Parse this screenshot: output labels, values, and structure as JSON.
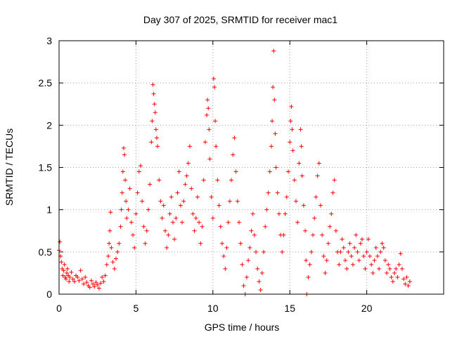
{
  "chart_data": {
    "type": "scatter",
    "title": "Day 307 of 2025, SRMTID for receiver mac1",
    "xlabel": "GPS time / hours",
    "ylabel": "SRMTID / TECUs",
    "xlim": [
      0,
      25
    ],
    "ylim": [
      0,
      3
    ],
    "xticks": [
      0,
      5,
      10,
      15,
      20
    ],
    "xtick_labels": [
      "0",
      "5",
      "10",
      "15",
      "20"
    ],
    "yticks": [
      0,
      0.5,
      1,
      1.5,
      2,
      2.5,
      3
    ],
    "ytick_labels": [
      "0",
      "0.5",
      "1",
      "1.5",
      "2",
      "2.5",
      "3"
    ],
    "grid": true,
    "marker": "+",
    "series": [
      {
        "name": "SRMTID",
        "color": "#ff0000",
        "points": [
          [
            0.0,
            0.52
          ],
          [
            0.05,
            0.62
          ],
          [
            0.1,
            0.45
          ],
          [
            0.15,
            0.38
          ],
          [
            0.2,
            0.3
          ],
          [
            0.25,
            0.22
          ],
          [
            0.3,
            0.28
          ],
          [
            0.35,
            0.35
          ],
          [
            0.4,
            0.2
          ],
          [
            0.45,
            0.18
          ],
          [
            0.5,
            0.25
          ],
          [
            0.55,
            0.3
          ],
          [
            0.6,
            0.22
          ],
          [
            0.65,
            0.15
          ],
          [
            0.7,
            0.2
          ],
          [
            0.8,
            0.26
          ],
          [
            0.9,
            0.18
          ],
          [
            1.0,
            0.15
          ],
          [
            1.1,
            0.22
          ],
          [
            1.2,
            0.2
          ],
          [
            1.3,
            0.16
          ],
          [
            1.4,
            0.28
          ],
          [
            1.5,
            0.18
          ],
          [
            1.6,
            0.12
          ],
          [
            1.7,
            0.2
          ],
          [
            1.8,
            0.14
          ],
          [
            1.9,
            0.1
          ],
          [
            2.0,
            0.08
          ],
          [
            2.1,
            0.16
          ],
          [
            2.2,
            0.12
          ],
          [
            2.3,
            0.09
          ],
          [
            2.4,
            0.14
          ],
          [
            2.5,
            0.11
          ],
          [
            2.6,
            0.07
          ],
          [
            2.7,
            0.13
          ],
          [
            2.8,
            0.2
          ],
          [
            2.9,
            0.15
          ],
          [
            3.0,
            0.22
          ],
          [
            3.1,
            0.35
          ],
          [
            3.2,
            0.45
          ],
          [
            3.25,
            0.6
          ],
          [
            3.3,
            0.75
          ],
          [
            3.35,
            0.97
          ],
          [
            3.4,
            0.55
          ],
          [
            3.5,
            0.38
          ],
          [
            3.6,
            0.3
          ],
          [
            3.7,
            0.42
          ],
          [
            3.8,
            0.5
          ],
          [
            3.9,
            0.6
          ],
          [
            4.0,
            0.8
          ],
          [
            4.05,
            1.0
          ],
          [
            4.1,
            1.2
          ],
          [
            4.15,
            1.45
          ],
          [
            4.2,
            1.73
          ],
          [
            4.25,
            1.65
          ],
          [
            4.3,
            1.35
          ],
          [
            4.35,
            1.1
          ],
          [
            4.4,
            0.9
          ],
          [
            4.5,
            1.0
          ],
          [
            4.6,
            1.25
          ],
          [
            4.7,
            0.85
          ],
          [
            4.8,
            0.7
          ],
          [
            4.9,
            0.55
          ],
          [
            5.0,
            0.95
          ],
          [
            5.1,
            1.2
          ],
          [
            5.2,
            1.45
          ],
          [
            5.3,
            1.52
          ],
          [
            5.4,
            1.1
          ],
          [
            5.5,
            0.8
          ],
          [
            5.6,
            0.6
          ],
          [
            5.7,
            0.75
          ],
          [
            5.8,
            1.0
          ],
          [
            5.9,
            1.3
          ],
          [
            6.0,
            1.8
          ],
          [
            6.05,
            2.05
          ],
          [
            6.1,
            2.48
          ],
          [
            6.15,
            2.37
          ],
          [
            6.2,
            2.25
          ],
          [
            6.25,
            2.15
          ],
          [
            6.3,
            1.95
          ],
          [
            6.35,
            1.85
          ],
          [
            6.4,
            1.75
          ],
          [
            6.5,
            1.35
          ],
          [
            6.6,
            1.1
          ],
          [
            6.7,
            0.9
          ],
          [
            6.8,
            1.05
          ],
          [
            6.9,
            0.75
          ],
          [
            7.0,
            0.55
          ],
          [
            7.1,
            0.7
          ],
          [
            7.2,
            0.95
          ],
          [
            7.3,
            1.15
          ],
          [
            7.4,
            0.85
          ],
          [
            7.5,
            0.65
          ],
          [
            7.6,
            0.9
          ],
          [
            7.7,
            1.2
          ],
          [
            7.8,
            1.45
          ],
          [
            7.9,
            1.05
          ],
          [
            8.0,
            0.85
          ],
          [
            8.1,
            1.1
          ],
          [
            8.2,
            1.3
          ],
          [
            8.3,
            1.4
          ],
          [
            8.4,
            1.55
          ],
          [
            8.5,
            1.75
          ],
          [
            8.6,
            1.25
          ],
          [
            8.7,
            0.95
          ],
          [
            8.8,
            0.75
          ],
          [
            8.9,
            0.9
          ],
          [
            9.0,
            1.15
          ],
          [
            9.1,
            0.85
          ],
          [
            9.2,
            0.6
          ],
          [
            9.3,
            0.8
          ],
          [
            9.4,
            1.35
          ],
          [
            9.5,
            1.8
          ],
          [
            9.6,
            2.12
          ],
          [
            9.65,
            2.3
          ],
          [
            9.7,
            2.2
          ],
          [
            9.75,
            1.95
          ],
          [
            9.8,
            1.6
          ],
          [
            9.9,
            1.15
          ],
          [
            10.0,
            0.9
          ],
          [
            10.05,
            2.55
          ],
          [
            10.1,
            2.45
          ],
          [
            10.15,
            2.05
          ],
          [
            10.2,
            1.75
          ],
          [
            10.3,
            1.35
          ],
          [
            10.4,
            1.05
          ],
          [
            10.5,
            0.8
          ],
          [
            10.6,
            0.6
          ],
          [
            10.7,
            0.45
          ],
          [
            10.8,
            0.3
          ],
          [
            10.9,
            0.55
          ],
          [
            11.0,
            0.85
          ],
          [
            11.1,
            1.1
          ],
          [
            11.2,
            1.35
          ],
          [
            11.3,
            1.65
          ],
          [
            11.4,
            1.85
          ],
          [
            11.5,
            1.45
          ],
          [
            11.6,
            1.1
          ],
          [
            11.7,
            0.85
          ],
          [
            11.8,
            0.6
          ],
          [
            11.9,
            0.35
          ],
          [
            12.0,
            0.1
          ],
          [
            12.1,
            0.0
          ],
          [
            12.2,
            0.2
          ],
          [
            12.3,
            0.4
          ],
          [
            12.4,
            0.55
          ],
          [
            12.5,
            0.75
          ],
          [
            12.6,
            0.95
          ],
          [
            12.7,
            0.7
          ],
          [
            12.8,
            0.5
          ],
          [
            12.9,
            0.3
          ],
          [
            13.0,
            0.15
          ],
          [
            13.1,
            0.05
          ],
          [
            13.2,
            0.25
          ],
          [
            13.3,
            0.5
          ],
          [
            13.4,
            0.8
          ],
          [
            13.5,
            1.0
          ],
          [
            13.6,
            1.2
          ],
          [
            13.7,
            1.45
          ],
          [
            13.8,
            1.75
          ],
          [
            13.85,
            2.05
          ],
          [
            13.9,
            2.45
          ],
          [
            13.95,
            2.88
          ],
          [
            14.0,
            2.3
          ],
          [
            14.05,
            1.9
          ],
          [
            14.1,
            1.5
          ],
          [
            14.2,
            1.2
          ],
          [
            14.3,
            0.95
          ],
          [
            14.4,
            0.7
          ],
          [
            14.5,
            0.5
          ],
          [
            14.6,
            0.7
          ],
          [
            14.7,
            0.95
          ],
          [
            14.8,
            1.15
          ],
          [
            14.9,
            1.45
          ],
          [
            15.0,
            1.8
          ],
          [
            15.05,
            2.05
          ],
          [
            15.1,
            2.22
          ],
          [
            15.15,
            1.95
          ],
          [
            15.2,
            1.7
          ],
          [
            15.3,
            1.35
          ],
          [
            15.4,
            1.1
          ],
          [
            15.5,
            0.85
          ],
          [
            15.6,
            1.55
          ],
          [
            15.7,
            1.95
          ],
          [
            15.75,
            1.75
          ],
          [
            15.8,
            1.4
          ],
          [
            15.9,
            1.05
          ],
          [
            16.0,
            0.75
          ],
          [
            16.05,
            0.4
          ],
          [
            16.1,
            0.0
          ],
          [
            16.2,
            0.2
          ],
          [
            16.3,
            0.35
          ],
          [
            16.4,
            0.5
          ],
          [
            16.5,
            0.7
          ],
          [
            16.6,
            0.9
          ],
          [
            16.7,
            1.15
          ],
          [
            16.8,
            1.4
          ],
          [
            16.9,
            1.55
          ],
          [
            17.0,
            1.05
          ],
          [
            17.1,
            0.7
          ],
          [
            17.2,
            0.45
          ],
          [
            17.3,
            0.25
          ],
          [
            17.4,
            0.4
          ],
          [
            17.5,
            0.6
          ],
          [
            17.6,
            0.8
          ],
          [
            17.7,
            0.95
          ],
          [
            17.8,
            1.2
          ],
          [
            17.9,
            1.35
          ],
          [
            18.0,
            0.75
          ],
          [
            18.1,
            0.5
          ],
          [
            18.2,
            0.35
          ],
          [
            18.3,
            0.5
          ],
          [
            18.4,
            0.65
          ],
          [
            18.5,
            0.55
          ],
          [
            18.6,
            0.4
          ],
          [
            18.7,
            0.3
          ],
          [
            18.8,
            0.5
          ],
          [
            18.9,
            0.6
          ],
          [
            19.0,
            0.45
          ],
          [
            19.1,
            0.35
          ],
          [
            19.2,
            0.55
          ],
          [
            19.3,
            0.7
          ],
          [
            19.4,
            0.5
          ],
          [
            19.5,
            0.4
          ],
          [
            19.6,
            0.6
          ],
          [
            19.7,
            0.65
          ],
          [
            19.8,
            0.45
          ],
          [
            19.9,
            0.3
          ],
          [
            20.0,
            0.5
          ],
          [
            20.1,
            0.65
          ],
          [
            20.2,
            0.45
          ],
          [
            20.3,
            0.35
          ],
          [
            20.4,
            0.25
          ],
          [
            20.5,
            0.4
          ],
          [
            20.6,
            0.55
          ],
          [
            20.7,
            0.45
          ],
          [
            20.8,
            0.3
          ],
          [
            20.9,
            0.5
          ],
          [
            21.0,
            0.6
          ],
          [
            21.1,
            0.55
          ],
          [
            21.2,
            0.4
          ],
          [
            21.3,
            0.25
          ],
          [
            21.4,
            0.35
          ],
          [
            21.5,
            0.3
          ],
          [
            21.6,
            0.2
          ],
          [
            21.7,
            0.15
          ],
          [
            21.8,
            0.25
          ],
          [
            21.9,
            0.3
          ],
          [
            22.0,
            0.2
          ],
          [
            22.1,
            0.35
          ],
          [
            22.2,
            0.48
          ],
          [
            22.3,
            0.3
          ],
          [
            22.4,
            0.18
          ],
          [
            22.5,
            0.12
          ],
          [
            22.6,
            0.2
          ],
          [
            22.7,
            0.1
          ],
          [
            22.8,
            0.15
          ]
        ]
      }
    ]
  }
}
